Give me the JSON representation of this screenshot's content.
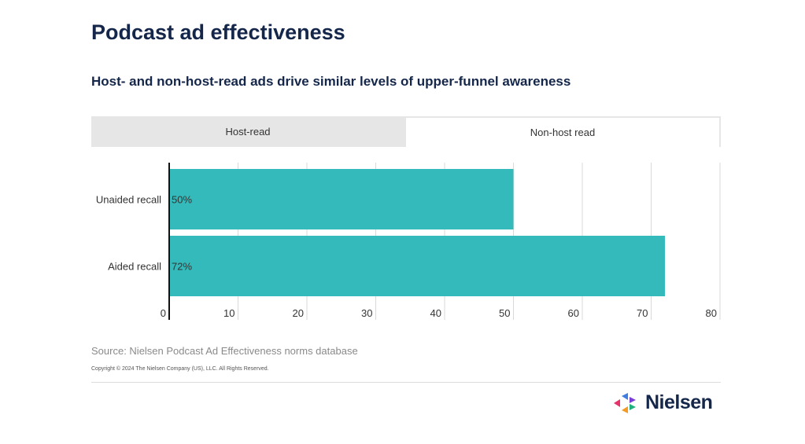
{
  "title": "Podcast ad effectiveness",
  "subtitle": "Host- and non-host-read ads drive similar levels of upper-funnel awareness",
  "tabs": [
    {
      "label": "Host-read",
      "active": false
    },
    {
      "label": "Non-host read",
      "active": true
    }
  ],
  "chart_data": {
    "type": "bar",
    "orientation": "horizontal",
    "categories": [
      "Unaided recall",
      "Aided recall"
    ],
    "values": [
      50,
      72
    ],
    "value_labels": [
      "50%",
      "72%"
    ],
    "xlim": [
      0,
      80
    ],
    "xticks": [
      0,
      10,
      20,
      30,
      40,
      50,
      60,
      70,
      80
    ],
    "grid": true,
    "bar_color": "#34baba"
  },
  "footer": {
    "source": "Source: Nielsen Podcast Ad Effectiveness norms database",
    "copyright": "Copyright © 2024 The Nielsen Company (US), LLC. All Rights Reserved."
  },
  "logo": {
    "text": "Nielsen",
    "icon": "nielsen-logo-icon"
  }
}
